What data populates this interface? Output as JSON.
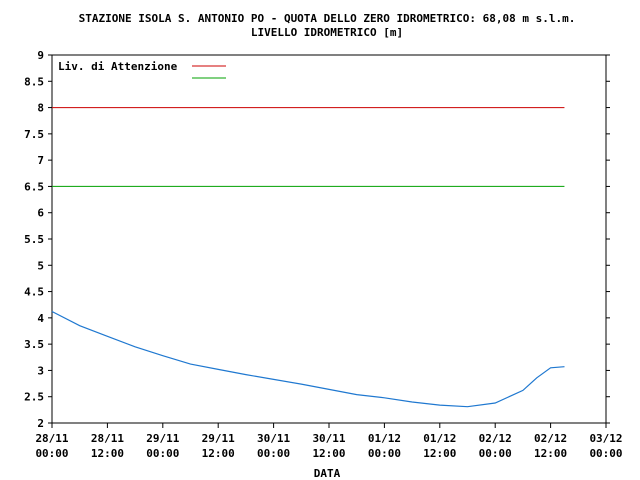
{
  "chart_data": {
    "type": "line",
    "title": "STAZIONE ISOLA S. ANTONIO PO - QUOTA DELLO ZERO IDROMETRICO: 68,08 m s.l.m.",
    "subtitle": "LIVELLO IDROMETRICO [m]",
    "xlabel": "DATA",
    "ylabel": "",
    "ylim": [
      2,
      9
    ],
    "yticks": [
      "2",
      "2.5",
      "3",
      "3.5",
      "4",
      "4.5",
      "5",
      "5.5",
      "6",
      "6.5",
      "7",
      "7.5",
      "8",
      "8.5",
      "9"
    ],
    "xticks": [
      {
        "date": "28/11",
        "time": "00:00"
      },
      {
        "date": "28/11",
        "time": "12:00"
      },
      {
        "date": "29/11",
        "time": "00:00"
      },
      {
        "date": "29/11",
        "time": "12:00"
      },
      {
        "date": "30/11",
        "time": "00:00"
      },
      {
        "date": "30/11",
        "time": "12:00"
      },
      {
        "date": "01/12",
        "time": "00:00"
      },
      {
        "date": "01/12",
        "time": "12:00"
      },
      {
        "date": "02/12",
        "time": "00:00"
      },
      {
        "date": "02/12",
        "time": "12:00"
      },
      {
        "date": "03/12",
        "time": "00:00"
      }
    ],
    "grid": false,
    "legend_position": "top-left",
    "series": [
      {
        "color": "#1f78d0",
        "x": [
          "28/11 00:00",
          "28/11 06:00",
          "28/11 12:00",
          "28/11 18:00",
          "29/11 00:00",
          "29/11 06:00",
          "29/11 12:00",
          "29/11 18:00",
          "30/11 00:00",
          "30/11 06:00",
          "30/11 12:00",
          "30/11 18:00",
          "01/12 00:00",
          "01/12 06:00",
          "01/12 12:00",
          "01/12 18:00",
          "02/12 00:00",
          "02/12 06:00",
          "02/12 09:00",
          "02/12 12:00",
          "02/12 15:00"
        ],
        "values": [
          4.12,
          3.85,
          3.65,
          3.45,
          3.28,
          3.12,
          3.02,
          2.92,
          2.83,
          2.74,
          2.64,
          2.54,
          2.48,
          2.4,
          2.34,
          2.31,
          2.38,
          2.62,
          2.86,
          3.05,
          3.07
        ]
      }
    ],
    "thresholds": [
      {
        "name": "Liv. di Attenzione",
        "value": 8.0,
        "color": "#cc0000",
        "x_end": "02/12 15:00"
      },
      {
        "name": "",
        "value": 6.5,
        "color": "#00a000",
        "x_end": "02/12 15:00"
      }
    ]
  }
}
